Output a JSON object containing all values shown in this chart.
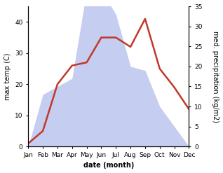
{
  "months": [
    "Jan",
    "Feb",
    "Mar",
    "Apr",
    "May",
    "Jun",
    "Jul",
    "Aug",
    "Sep",
    "Oct",
    "Nov",
    "Dec"
  ],
  "temperature": [
    1,
    5,
    20,
    26,
    27,
    35,
    35,
    32,
    41,
    25,
    19,
    12
  ],
  "precipitation": [
    0,
    13,
    15,
    17,
    39,
    39,
    33,
    20,
    19,
    10,
    5,
    0
  ],
  "temp_color": "#c0392b",
  "precip_fill_color": "#c5cdf0",
  "precip_edge_color": "#aab4e8",
  "temp_ylim": [
    0,
    45
  ],
  "precip_ylim": [
    0,
    35
  ],
  "temp_yticks": [
    0,
    10,
    20,
    30,
    40
  ],
  "precip_yticks": [
    0,
    5,
    10,
    15,
    20,
    25,
    30,
    35
  ],
  "xlabel": "date (month)",
  "ylabel_left": "max temp (C)",
  "ylabel_right": "med. precipitation (kg/m2)",
  "label_fontsize": 7,
  "tick_fontsize": 6.5
}
